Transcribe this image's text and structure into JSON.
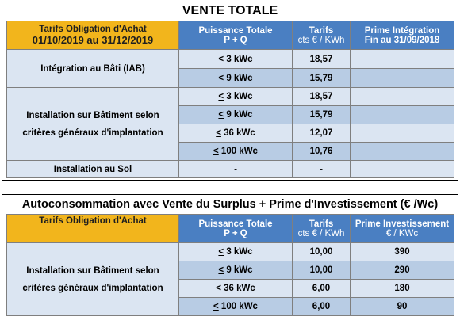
{
  "vente_totale": {
    "title": "VENTE TOTALE",
    "header": {
      "col1_line1": "Tarifs Obligation d'Achat",
      "col1_line2": "01/10/2019 au 31/12/2019",
      "col2_line1": "Puissance Totale",
      "col2_line2": "P + Q",
      "col3_line1": "Tarifs",
      "col3_line2": "cts € / KWh",
      "col4_line1": "Prime Intégration",
      "col4_line2": "Fin au 31/09/2018"
    },
    "groups": [
      {
        "label_line1": "Intégration au Bâti (IAB)",
        "label_line2": "",
        "rows": [
          {
            "power_sym": "<",
            "power": " 3 kWc",
            "tarif": "18,57",
            "prime": ""
          },
          {
            "power_sym": "<",
            "power": " 9 kWc",
            "tarif": "15,79",
            "prime": ""
          }
        ]
      },
      {
        "label_line1": "Installation sur Bâtiment selon",
        "label_line2": "critères généraux d'implantation",
        "rows": [
          {
            "power_sym": "<",
            "power": " 3 kWc",
            "tarif": "18,57",
            "prime": ""
          },
          {
            "power_sym": "<",
            "power": " 9 kWc",
            "tarif": "15,79",
            "prime": ""
          },
          {
            "power_sym": "<",
            "power": " 36 kWc",
            "tarif": "12,07",
            "prime": ""
          },
          {
            "power_sym": "<",
            "power": " 100 kWc",
            "tarif": "10,76",
            "prime": ""
          }
        ]
      },
      {
        "label_line1": "Installation au Sol",
        "label_line2": "",
        "rows": [
          {
            "power_sym": "",
            "power": "-",
            "tarif": "-",
            "prime": ""
          }
        ]
      }
    ]
  },
  "autoconso": {
    "title": "Autoconsommation avec Vente du Surplus + Prime d'Investissement (€ /Wc)",
    "header": {
      "col1_line1": "Tarifs Obligation d'Achat",
      "col2_line1": "Puissance Totale",
      "col2_line2": "P + Q",
      "col3_line1": "Tarifs",
      "col3_line2": "cts € / KWh",
      "col4_line1": "Prime Investissement",
      "col4_line2": "€ / KWc"
    },
    "group": {
      "label_line1": "Installation sur Bâtiment selon",
      "label_line2": "critères généraux d'implantation"
    },
    "rows": [
      {
        "power_sym": "<",
        "power": " 3 kWc",
        "tarif": "10,00",
        "prime": "390"
      },
      {
        "power_sym": "<",
        "power": " 9 kWc",
        "tarif": "10,00",
        "prime": "290"
      },
      {
        "power_sym": "<",
        "power": " 36 kWc",
        "tarif": "6,00",
        "prime": "180"
      },
      {
        "power_sym": "<",
        "power": " 100 kWc",
        "tarif": "6,00",
        "prime": "90"
      }
    ]
  }
}
